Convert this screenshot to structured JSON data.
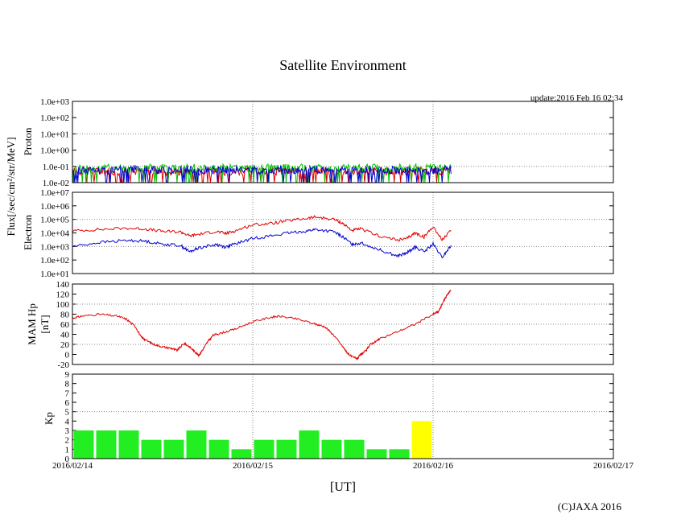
{
  "title": "Satellite Environment",
  "update": "update:2016 Feb 16 02:34",
  "copyright": "(C)JAXA 2016",
  "colors": {
    "red": "#e00000",
    "blue": "#0000d0",
    "green": "#00c000",
    "kp_green": "#22ee22",
    "kp_yellow": "#ffff00",
    "grid": "#888888"
  },
  "chart_data": [
    {
      "type": "line",
      "name": "proton",
      "ylabel_outer": "Flux[/sec/cm²/str/MeV]",
      "ylabel": "Proton",
      "yscale": "log",
      "ylim": [
        0.01,
        1000.0
      ],
      "yticks": [
        "1.0e+03",
        "1.0e+02",
        "1.0e+01",
        "1.0e+00",
        "1.0e-01",
        "1.0e-02"
      ],
      "xlim": [
        "2016-02-14",
        "2016-02-17"
      ],
      "series": [
        {
          "color": "red",
          "base": [
            [
              0.0,
              0.05
            ],
            [
              2.1,
              0.05
            ]
          ]
        },
        {
          "color": "green",
          "base": [
            [
              0.0,
              0.08
            ],
            [
              2.1,
              0.08
            ]
          ]
        },
        {
          "color": "blue",
          "base": [
            [
              0.0,
              0.06
            ],
            [
              2.1,
              0.06
            ]
          ]
        }
      ]
    },
    {
      "type": "line",
      "name": "electron",
      "ylabel": "Electron",
      "yscale": "log",
      "ylim": [
        10.0,
        10000000.0
      ],
      "yticks": [
        "1.0e+07",
        "1.0e+06",
        "1.0e+05",
        "1.0e+04",
        "1.0e+03",
        "1.0e+02",
        "1.0e+01"
      ],
      "xlim": [
        "2016-02-14",
        "2016-02-17"
      ],
      "series": [
        {
          "color": "red",
          "points": [
            [
              0.0,
              14000
            ],
            [
              0.15,
              18000
            ],
            [
              0.3,
              22000
            ],
            [
              0.4,
              20000
            ],
            [
              0.5,
              13000
            ],
            [
              0.6,
              12000
            ],
            [
              0.65,
              6000
            ],
            [
              0.7,
              8000
            ],
            [
              0.8,
              13000
            ],
            [
              0.85,
              9000
            ],
            [
              0.9,
              14000
            ],
            [
              1.0,
              40000
            ],
            [
              1.1,
              50000
            ],
            [
              1.2,
              80000
            ],
            [
              1.3,
              120000
            ],
            [
              1.35,
              150000
            ],
            [
              1.45,
              100000
            ],
            [
              1.5,
              50000
            ],
            [
              1.55,
              15000
            ],
            [
              1.6,
              20000
            ],
            [
              1.7,
              6000
            ],
            [
              1.8,
              3000
            ],
            [
              1.85,
              3500
            ],
            [
              1.9,
              10000
            ],
            [
              1.95,
              5000
            ],
            [
              2.0,
              30000
            ],
            [
              2.05,
              3000
            ],
            [
              2.1,
              15000
            ]
          ]
        },
        {
          "color": "blue",
          "points": [
            [
              0.0,
              1000
            ],
            [
              0.15,
              2000
            ],
            [
              0.3,
              2800
            ],
            [
              0.4,
              2500
            ],
            [
              0.5,
              1500
            ],
            [
              0.6,
              1200
            ],
            [
              0.65,
              400
            ],
            [
              0.7,
              800
            ],
            [
              0.8,
              1400
            ],
            [
              0.85,
              900
            ],
            [
              0.9,
              1500
            ],
            [
              1.0,
              4000
            ],
            [
              1.1,
              6000
            ],
            [
              1.2,
              10000
            ],
            [
              1.3,
              14000
            ],
            [
              1.35,
              18000
            ],
            [
              1.45,
              12000
            ],
            [
              1.5,
              5000
            ],
            [
              1.55,
              1500
            ],
            [
              1.6,
              1800
            ],
            [
              1.7,
              600
            ],
            [
              1.8,
              200
            ],
            [
              1.85,
              300
            ],
            [
              1.9,
              900
            ],
            [
              1.95,
              400
            ],
            [
              2.0,
              1500
            ],
            [
              2.05,
              150
            ],
            [
              2.1,
              1200
            ]
          ]
        }
      ]
    },
    {
      "type": "line",
      "name": "mam-hp",
      "ylabel": "MAM Hp",
      "ylabel2": "[nT]",
      "ylim": [
        -20,
        140
      ],
      "yticks": [
        "140",
        "120",
        "100",
        "80",
        "60",
        "40",
        "20",
        "0",
        "-20"
      ],
      "xlim": [
        "2016-02-14",
        "2016-02-17"
      ],
      "series": [
        {
          "color": "red",
          "points": [
            [
              0.0,
              72
            ],
            [
              0.05,
              76
            ],
            [
              0.15,
              80
            ],
            [
              0.25,
              76
            ],
            [
              0.3,
              70
            ],
            [
              0.35,
              55
            ],
            [
              0.38,
              35
            ],
            [
              0.4,
              30
            ],
            [
              0.45,
              20
            ],
            [
              0.5,
              15
            ],
            [
              0.55,
              12
            ],
            [
              0.58,
              8
            ],
            [
              0.62,
              22
            ],
            [
              0.65,
              15
            ],
            [
              0.68,
              5
            ],
            [
              0.7,
              -2
            ],
            [
              0.72,
              8
            ],
            [
              0.75,
              25
            ],
            [
              0.78,
              38
            ],
            [
              0.82,
              42
            ],
            [
              0.9,
              50
            ],
            [
              1.0,
              65
            ],
            [
              1.1,
              74
            ],
            [
              1.15,
              76
            ],
            [
              1.25,
              70
            ],
            [
              1.35,
              60
            ],
            [
              1.4,
              55
            ],
            [
              1.45,
              38
            ],
            [
              1.5,
              15
            ],
            [
              1.52,
              5
            ],
            [
              1.55,
              -5
            ],
            [
              1.58,
              -8
            ],
            [
              1.6,
              0
            ],
            [
              1.63,
              8
            ],
            [
              1.65,
              20
            ],
            [
              1.68,
              25
            ],
            [
              1.7,
              30
            ],
            [
              1.8,
              45
            ],
            [
              1.9,
              60
            ],
            [
              2.0,
              80
            ],
            [
              2.03,
              85
            ],
            [
              2.05,
              100
            ],
            [
              2.08,
              120
            ],
            [
              2.1,
              128
            ]
          ]
        }
      ]
    },
    {
      "type": "bar",
      "name": "kp",
      "ylabel": "Kp",
      "ylim": [
        0,
        9
      ],
      "yticks": [
        "9",
        "8",
        "7",
        "6",
        "5",
        "4",
        "3",
        "2",
        "1",
        "0"
      ],
      "xlim": [
        "2016-02-14",
        "2016-02-17"
      ],
      "values": [
        3,
        3,
        3,
        2,
        2,
        3,
        2,
        1,
        2,
        2,
        3,
        2,
        2,
        1,
        1,
        4
      ],
      "bar_colors": [
        "kp_green",
        "kp_green",
        "kp_green",
        "kp_green",
        "kp_green",
        "kp_green",
        "kp_green",
        "kp_green",
        "kp_green",
        "kp_green",
        "kp_green",
        "kp_green",
        "kp_green",
        "kp_green",
        "kp_green",
        "kp_yellow"
      ],
      "xticks": [
        "2016/02/14",
        "2016/02/15",
        "2016/02/16",
        "2016/02/17"
      ],
      "xlabel": "[UT]"
    }
  ]
}
